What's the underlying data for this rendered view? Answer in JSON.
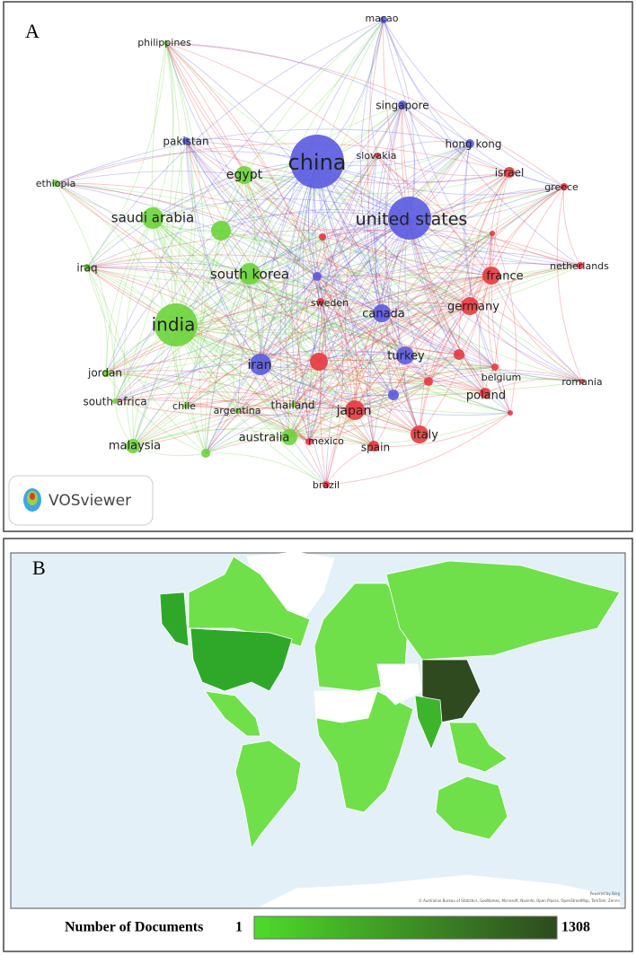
{
  "panel_a": {
    "letter": "A",
    "brand": "VOSviewer",
    "clusters": [
      "#5a5be0",
      "#6bd43a",
      "#e8383d"
    ],
    "nodes": [
      {
        "label": "china",
        "cluster": 0
      },
      {
        "label": "united states",
        "cluster": 0
      },
      {
        "label": "india",
        "cluster": 1
      },
      {
        "label": "saudi arabia",
        "cluster": 1
      },
      {
        "label": "south korea",
        "cluster": 1
      },
      {
        "label": "egypt",
        "cluster": 1
      },
      {
        "label": "macao",
        "cluster": 0
      },
      {
        "label": "singapore",
        "cluster": 0
      },
      {
        "label": "pakistan",
        "cluster": 0
      },
      {
        "label": "hong kong",
        "cluster": 0
      },
      {
        "label": "slovakia",
        "cluster": 2
      },
      {
        "label": "israel",
        "cluster": 2
      },
      {
        "label": "greece",
        "cluster": 2
      },
      {
        "label": "netherlands",
        "cluster": 2
      },
      {
        "label": "france",
        "cluster": 2
      },
      {
        "label": "germany",
        "cluster": 2
      },
      {
        "label": "canada",
        "cluster": 0
      },
      {
        "label": "sweden",
        "cluster": 2
      },
      {
        "label": "iran",
        "cluster": 0
      },
      {
        "label": "turkey",
        "cluster": 0
      },
      {
        "label": "belgium",
        "cluster": 2
      },
      {
        "label": "romania",
        "cluster": 2
      },
      {
        "label": "poland",
        "cluster": 2
      },
      {
        "label": "japan",
        "cluster": 2
      },
      {
        "label": "italy",
        "cluster": 2
      },
      {
        "label": "spain",
        "cluster": 2
      },
      {
        "label": "mexico",
        "cluster": 2
      },
      {
        "label": "brazil",
        "cluster": 2
      },
      {
        "label": "australia",
        "cluster": 1
      },
      {
        "label": "thailand",
        "cluster": 1
      },
      {
        "label": "argentina",
        "cluster": 1
      },
      {
        "label": "chile",
        "cluster": 1
      },
      {
        "label": "south africa",
        "cluster": 1
      },
      {
        "label": "jordan",
        "cluster": 1
      },
      {
        "label": "malaysia",
        "cluster": 1
      },
      {
        "label": "iraq",
        "cluster": 1
      },
      {
        "label": "ethiopia",
        "cluster": 1
      },
      {
        "label": "philippines",
        "cluster": 1
      }
    ]
  },
  "panel_b": {
    "letter": "B",
    "credit": "Powered by Bing",
    "attribution": "© Australian Bureau of Statistics, GeoNames, Microsoft, Navinfo, Open Places, OpenStreetMap, TomTom, Zenrin",
    "legend": {
      "title": "Number of Documents",
      "min": 1,
      "max": 1308,
      "colors": [
        "#4ddb2a",
        "#2e4a1e"
      ]
    }
  }
}
